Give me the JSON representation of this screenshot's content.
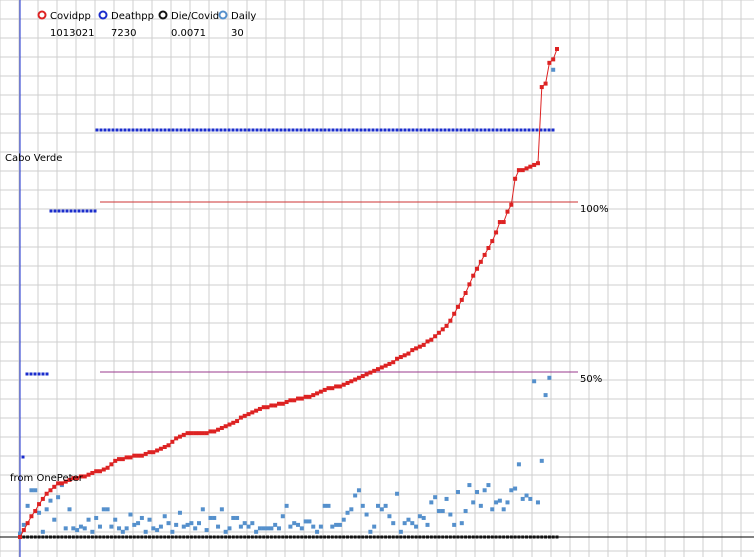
{
  "chart_data": {
    "type": "line",
    "title": "",
    "location_label": "Cabo Verde",
    "source_label": "from OnePeter",
    "grid": true,
    "legend_position": "top-left",
    "reference_lines": [
      {
        "label": "100%",
        "fraction": 1.0,
        "color": "#cc3333"
      },
      {
        "label": "50%",
        "fraction": 0.5,
        "color": "#9a3a8c"
      }
    ],
    "legend": [
      {
        "name": "Covidpp",
        "value": "1013021",
        "color": "#dd2222"
      },
      {
        "name": "Deathpp",
        "value": "7230",
        "color": "#1a2ccc"
      },
      {
        "name": "Die/Covid",
        "value": "0.0071",
        "color": "#111111"
      },
      {
        "name": "Daily",
        "value": "30",
        "color": "#5590cc"
      }
    ],
    "series": [
      {
        "name": "Covidpp",
        "values": [
          0,
          0.04,
          0.08,
          0.12,
          0.15,
          0.19,
          0.22,
          0.25,
          0.27,
          0.29,
          0.31,
          0.31,
          0.32,
          0.33,
          0.34,
          0.34,
          0.35,
          0.35,
          0.36,
          0.37,
          0.38,
          0.38,
          0.39,
          0.4,
          0.42,
          0.44,
          0.45,
          0.45,
          0.46,
          0.46,
          0.47,
          0.47,
          0.47,
          0.48,
          0.49,
          0.49,
          0.5,
          0.51,
          0.52,
          0.53,
          0.55,
          0.57,
          0.58,
          0.59,
          0.6,
          0.6,
          0.6,
          0.6,
          0.6,
          0.6,
          0.61,
          0.61,
          0.62,
          0.63,
          0.64,
          0.65,
          0.66,
          0.67,
          0.69,
          0.7,
          0.71,
          0.72,
          0.73,
          0.74,
          0.75,
          0.75,
          0.76,
          0.76,
          0.77,
          0.77,
          0.78,
          0.79,
          0.79,
          0.8,
          0.8,
          0.81,
          0.81,
          0.82,
          0.83,
          0.84,
          0.85,
          0.86,
          0.86,
          0.87,
          0.87,
          0.88,
          0.89,
          0.9,
          0.91,
          0.92,
          0.93,
          0.94,
          0.95,
          0.96,
          0.97,
          0.98,
          0.99,
          1.0,
          1.01,
          1.03,
          1.04,
          1.05,
          1.06,
          1.08,
          1.09,
          1.1,
          1.11,
          1.13,
          1.14,
          1.16,
          1.18,
          1.2,
          1.22,
          1.25,
          1.29,
          1.33,
          1.37,
          1.41,
          1.46,
          1.51,
          1.55,
          1.59,
          1.63,
          1.67,
          1.71,
          1.76,
          1.82,
          1.82,
          1.88,
          1.92,
          2.07,
          2.12,
          2.12,
          2.13,
          2.14,
          2.15,
          2.16,
          2.6,
          2.62,
          2.74,
          2.76,
          2.82
        ]
      },
      {
        "name": "Daily",
        "values": [
          0.02,
          0.07,
          0.18,
          0.27,
          0.27,
          0.14,
          0.03,
          0.16,
          0.21,
          0.1,
          0.23,
          0.3,
          0.05,
          0.16,
          0.05,
          0.04,
          0.06,
          0.05,
          0.1,
          0.03,
          0.11,
          0.06,
          0.16,
          0.16,
          0.06,
          0.1,
          0.05,
          0.03,
          0.05,
          0.13,
          0.07,
          0.08,
          0.11,
          0.03,
          0.1,
          0.05,
          0.04,
          0.06,
          0.12,
          0.08,
          0.03,
          0.07,
          0.14,
          0.06,
          0.07,
          0.08,
          0.05,
          0.08,
          0.16,
          0.04,
          0.11,
          0.11,
          0.06,
          0.16,
          0.03,
          0.05,
          0.11,
          0.11,
          0.06,
          0.08,
          0.06,
          0.08,
          0.03,
          0.05,
          0.05,
          0.05,
          0.05,
          0.07,
          0.05,
          0.12,
          0.18,
          0.06,
          0.08,
          0.07,
          0.05,
          0.09,
          0.09,
          0.06,
          0.03,
          0.06,
          0.18,
          0.18,
          0.06,
          0.07,
          0.07,
          0.1,
          0.14,
          0.16,
          0.24,
          0.27,
          0.18,
          0.13,
          0.03,
          0.06,
          0.18,
          0.16,
          0.18,
          0.12,
          0.08,
          0.25,
          0.03,
          0.08,
          0.1,
          0.08,
          0.06,
          0.12,
          0.11,
          0.07,
          0.2,
          0.23,
          0.15,
          0.15,
          0.22,
          0.13,
          0.07,
          0.26,
          0.08,
          0.15,
          0.3,
          0.2,
          0.26,
          0.18,
          0.27,
          0.3,
          0.16,
          0.2,
          0.21,
          0.16,
          0.2,
          0.27,
          0.28,
          0.42,
          0.22,
          0.24,
          0.22,
          0.9,
          0.2,
          0.44,
          0.82,
          0.92,
          2.7
        ]
      }
    ]
  }
}
